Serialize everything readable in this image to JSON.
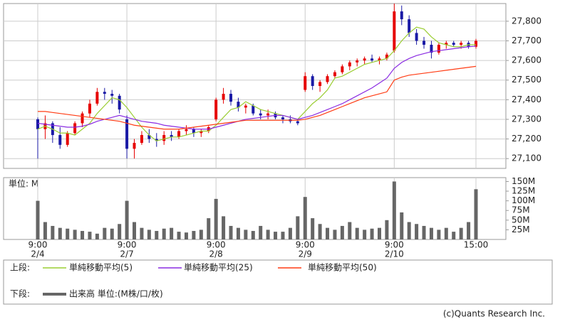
{
  "chart_data": [
    {
      "type": "candlestick",
      "ylim": [
        27050,
        27890
      ],
      "yticks": [
        {
          "value": 27100,
          "label": "27,100"
        },
        {
          "value": 27200,
          "label": "27,200"
        },
        {
          "value": 27300,
          "label": "27,300"
        },
        {
          "value": 27400,
          "label": "27,400"
        },
        {
          "value": 27500,
          "label": "27,500"
        },
        {
          "value": 27600,
          "label": "27,600"
        },
        {
          "value": 27700,
          "label": "27,700"
        },
        {
          "value": 27800,
          "label": "27,800"
        }
      ],
      "grid": true,
      "panel_label": "上段:",
      "up_color": "#e60000",
      "down_color": "#1a1aa6",
      "ohlc": [
        [
          27300,
          27310,
          27100,
          27250
        ],
        [
          27250,
          27320,
          27200,
          27280
        ],
        [
          27280,
          27290,
          27180,
          27220
        ],
        [
          27220,
          27260,
          27150,
          27170
        ],
        [
          27170,
          27240,
          27160,
          27230
        ],
        [
          27230,
          27290,
          27220,
          27280
        ],
        [
          27280,
          27340,
          27260,
          27330
        ],
        [
          27330,
          27400,
          27310,
          27380
        ],
        [
          27380,
          27460,
          27370,
          27440
        ],
        [
          27440,
          27460,
          27400,
          27430
        ],
        [
          27430,
          27450,
          27380,
          27420
        ],
        [
          27420,
          27430,
          27330,
          27350
        ],
        [
          27300,
          27320,
          27100,
          27150
        ],
        [
          27150,
          27200,
          27100,
          27180
        ],
        [
          27180,
          27240,
          27170,
          27220
        ],
        [
          27220,
          27250,
          27180,
          27200
        ],
        [
          27200,
          27230,
          27160,
          27190
        ],
        [
          27190,
          27240,
          27170,
          27220
        ],
        [
          27220,
          27240,
          27190,
          27210
        ],
        [
          27210,
          27250,
          27200,
          27240
        ],
        [
          27240,
          27270,
          27220,
          27250
        ],
        [
          27250,
          27260,
          27210,
          27230
        ],
        [
          27230,
          27250,
          27210,
          27240
        ],
        [
          27240,
          27270,
          27230,
          27260
        ],
        [
          27300,
          27410,
          27290,
          27400
        ],
        [
          27400,
          27460,
          27380,
          27430
        ],
        [
          27430,
          27450,
          27370,
          27390
        ],
        [
          27390,
          27410,
          27340,
          27360
        ],
        [
          27360,
          27380,
          27330,
          27370
        ],
        [
          27370,
          27380,
          27320,
          27330
        ],
        [
          27330,
          27350,
          27300,
          27320
        ],
        [
          27320,
          27350,
          27300,
          27330
        ],
        [
          27330,
          27340,
          27300,
          27310
        ],
        [
          27310,
          27320,
          27280,
          27300
        ],
        [
          27300,
          27320,
          27280,
          27290
        ],
        [
          27290,
          27300,
          27270,
          27280
        ],
        [
          27450,
          27540,
          27440,
          27520
        ],
        [
          27520,
          27530,
          27450,
          27470
        ],
        [
          27470,
          27500,
          27440,
          27490
        ],
        [
          27490,
          27530,
          27480,
          27520
        ],
        [
          27520,
          27550,
          27510,
          27540
        ],
        [
          27540,
          27580,
          27530,
          27570
        ],
        [
          27570,
          27600,
          27550,
          27590
        ],
        [
          27590,
          27610,
          27570,
          27600
        ],
        [
          27600,
          27620,
          27580,
          27610
        ],
        [
          27610,
          27630,
          27590,
          27600
        ],
        [
          27600,
          27620,
          27580,
          27610
        ],
        [
          27610,
          27640,
          27600,
          27630
        ],
        [
          27650,
          27890,
          27640,
          27850
        ],
        [
          27850,
          27880,
          27780,
          27810
        ],
        [
          27810,
          27830,
          27720,
          27740
        ],
        [
          27740,
          27760,
          27680,
          27700
        ],
        [
          27700,
          27720,
          27660,
          27680
        ],
        [
          27680,
          27700,
          27610,
          27640
        ],
        [
          27640,
          27690,
          27630,
          27680
        ],
        [
          27680,
          27700,
          27660,
          27690
        ],
        [
          27690,
          27700,
          27670,
          27680
        ],
        [
          27680,
          27700,
          27660,
          27690
        ],
        [
          27690,
          27700,
          27660,
          27670
        ],
        [
          27670,
          27710,
          27660,
          27700
        ]
      ],
      "series": [
        {
          "name": "単純移動平均(5)",
          "color": "#9acd32",
          "values": [
            27250,
            27265,
            27250,
            27230,
            27230,
            27220,
            27250,
            27280,
            27330,
            27370,
            27410,
            27400,
            27360,
            27310,
            27260,
            27220,
            27190,
            27200,
            27210,
            27210,
            27220,
            27230,
            27240,
            27240,
            27270,
            27310,
            27350,
            27360,
            27390,
            27370,
            27350,
            27340,
            27330,
            27320,
            27310,
            27300,
            27340,
            27380,
            27410,
            27450,
            27510,
            27520,
            27540,
            27560,
            27580,
            27590,
            27600,
            27610,
            27650,
            27700,
            27740,
            27770,
            27760,
            27720,
            27690,
            27680,
            27670,
            27670,
            27680,
            27680
          ]
        },
        {
          "name": "単純移動平均(25)",
          "color": "#8a2be2",
          "values": [
            27280,
            27275,
            27270,
            27265,
            27260,
            27260,
            27265,
            27275,
            27290,
            27300,
            27310,
            27320,
            27310,
            27300,
            27290,
            27285,
            27280,
            27270,
            27265,
            27260,
            27255,
            27250,
            27250,
            27250,
            27260,
            27270,
            27280,
            27290,
            27300,
            27305,
            27310,
            27315,
            27320,
            27320,
            27310,
            27300,
            27310,
            27320,
            27335,
            27350,
            27365,
            27380,
            27400,
            27420,
            27440,
            27460,
            27485,
            27510,
            27560,
            27590,
            27610,
            27625,
            27635,
            27645,
            27650,
            27655,
            27660,
            27665,
            27670,
            27673
          ]
        },
        {
          "name": "単純移動平均(50)",
          "color": "#ff3c14",
          "values": [
            27340,
            27340,
            27335,
            27330,
            27325,
            27320,
            27315,
            27310,
            27305,
            27300,
            27295,
            27290,
            27280,
            27270,
            27265,
            27260,
            27255,
            27250,
            27250,
            27250,
            27255,
            27260,
            27265,
            27270,
            27275,
            27280,
            27285,
            27290,
            27295,
            27295,
            27295,
            27295,
            27295,
            27295,
            27295,
            27295,
            27300,
            27310,
            27320,
            27335,
            27350,
            27365,
            27380,
            27395,
            27410,
            27420,
            27430,
            27440,
            27500,
            27515,
            27525,
            27530,
            27535,
            27540,
            27545,
            27550,
            27555,
            27560,
            27565,
            27570
          ]
        }
      ]
    },
    {
      "type": "bar",
      "unit_label": "単位: M",
      "panel_label": "下段:",
      "ylim": [
        0,
        160
      ],
      "yticks": [
        {
          "value": 25,
          "label": "25M"
        },
        {
          "value": 50,
          "label": "50M"
        },
        {
          "value": 75,
          "label": "75M"
        },
        {
          "value": 100,
          "label": "100M"
        },
        {
          "value": 125,
          "label": "125M"
        },
        {
          "value": 150,
          "label": "150M"
        }
      ],
      "categories": [
        "9:00",
        null,
        null,
        null,
        null,
        null,
        null,
        null,
        null,
        null,
        null,
        null,
        "9:00",
        null,
        null,
        null,
        null,
        null,
        null,
        null,
        null,
        null,
        null,
        null,
        "9:00",
        null,
        null,
        null,
        null,
        null,
        null,
        null,
        null,
        null,
        null,
        null,
        "9:00",
        null,
        null,
        null,
        null,
        null,
        null,
        null,
        null,
        null,
        null,
        null,
        "9:00",
        null,
        null,
        null,
        null,
        null,
        null,
        null,
        null,
        null,
        null,
        "15:00"
      ],
      "dates": [
        "2/4",
        null,
        null,
        null,
        null,
        null,
        null,
        null,
        null,
        null,
        null,
        null,
        "2/7",
        null,
        null,
        null,
        null,
        null,
        null,
        null,
        null,
        null,
        null,
        null,
        "2/8",
        null,
        null,
        null,
        null,
        null,
        null,
        null,
        null,
        null,
        null,
        null,
        "2/9",
        null,
        null,
        null,
        null,
        null,
        null,
        null,
        null,
        null,
        null,
        null,
        "2/10",
        null,
        null,
        null,
        null,
        null,
        null,
        null,
        null,
        null,
        null,
        null
      ],
      "series": [
        {
          "name": "出来高 単位:(M株/口/枚)",
          "color": "#666666",
          "values": [
            100,
            45,
            35,
            30,
            28,
            25,
            22,
            20,
            15,
            30,
            28,
            40,
            100,
            45,
            30,
            25,
            22,
            28,
            30,
            20,
            18,
            22,
            25,
            55,
            105,
            60,
            35,
            30,
            25,
            22,
            35,
            25,
            20,
            20,
            30,
            60,
            110,
            55,
            40,
            30,
            25,
            35,
            45,
            30,
            25,
            28,
            30,
            50,
            150,
            70,
            45,
            40,
            35,
            30,
            25,
            30,
            20,
            30,
            45,
            130
          ]
        }
      ]
    }
  ],
  "copyright": "(c)Quants Research Inc."
}
